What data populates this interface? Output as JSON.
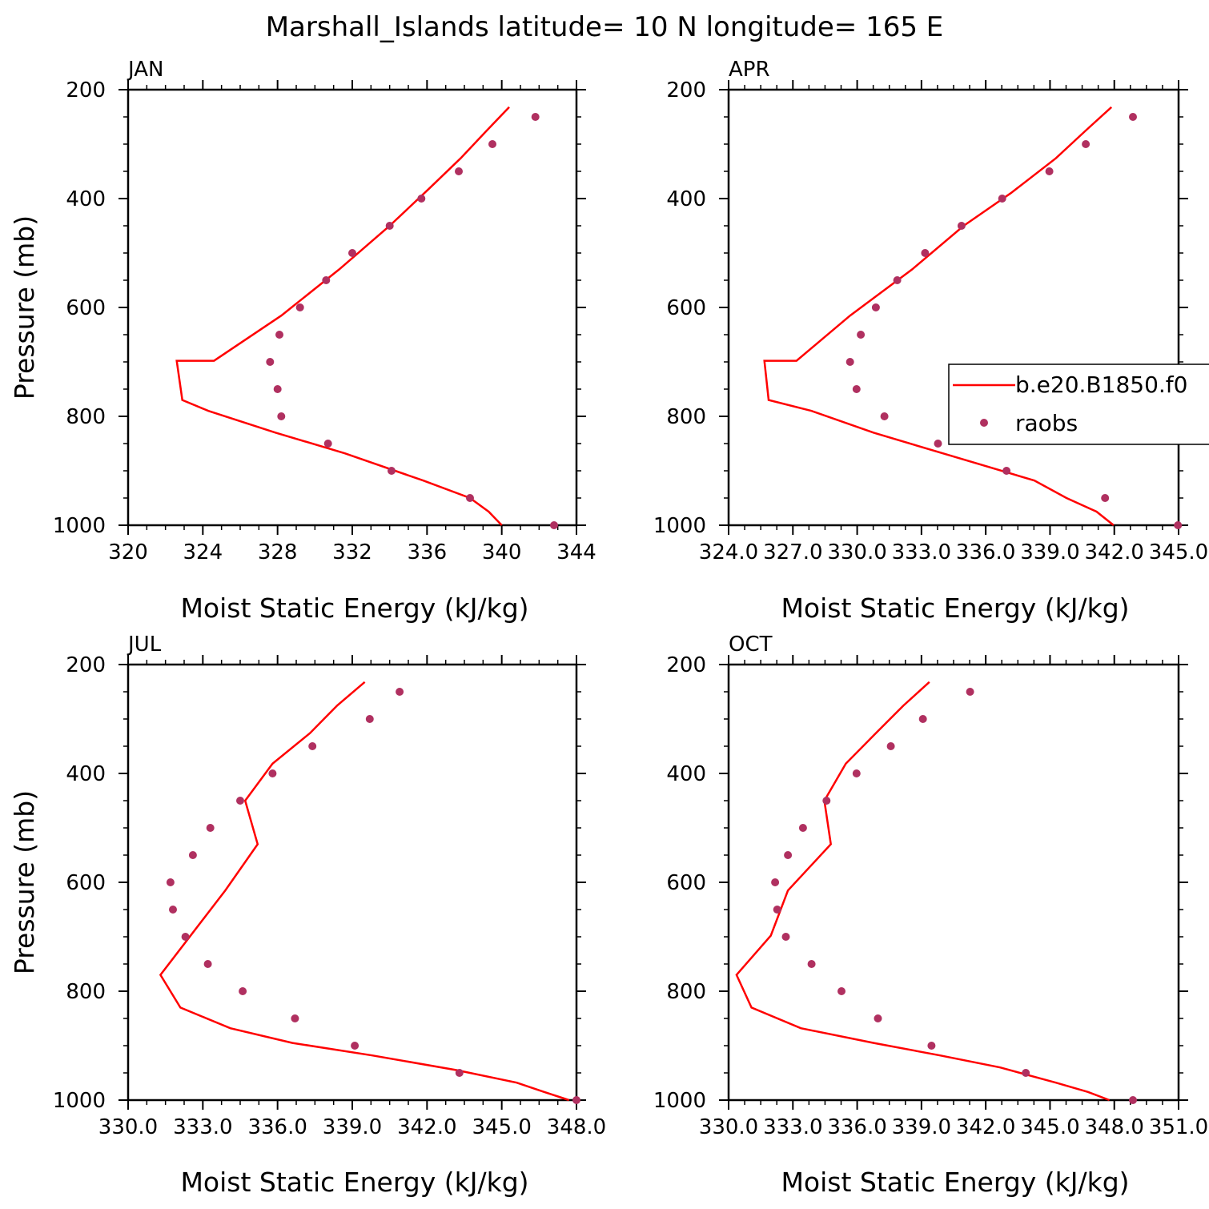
{
  "title": "Marshall_Islands  latitude= 10 N longitude= 165 E",
  "colors": {
    "model": "#ff0000",
    "obs": "#b03060",
    "axis": "#000000"
  },
  "legend": {
    "model_label": "b.e20.B1850.f0",
    "obs_label": "raobs",
    "panel": 1
  },
  "chart_data": [
    {
      "type": "line+scatter",
      "panel": "JAN",
      "xlabel": "Moist Static Energy (kJ/kg)",
      "ylabel": "Pressure (mb)",
      "xlim": [
        320,
        344
      ],
      "ylim": [
        1000,
        200
      ],
      "x_ticks": [
        "320",
        "324",
        "328",
        "332",
        "336",
        "340",
        "344"
      ],
      "x_tick_values": [
        320,
        324,
        328,
        332,
        336,
        340,
        344
      ],
      "y_ticks": [
        "200",
        "400",
        "600",
        "800",
        "1000"
      ],
      "y_tick_values": [
        200,
        400,
        600,
        800,
        1000
      ],
      "series": [
        {
          "kind": "line",
          "points": [
            [
              340.4,
              232
            ],
            [
              339.2,
              275
            ],
            [
              337.8,
              326
            ],
            [
              336.1,
              382
            ],
            [
              334.0,
              450
            ],
            [
              331.3,
              530
            ],
            [
              328.2,
              615
            ],
            [
              324.6,
              698
            ],
            [
              322.6,
              698
            ],
            [
              322.9,
              770
            ],
            [
              324.3,
              790
            ],
            [
              327.9,
              830
            ],
            [
              331.6,
              868
            ],
            [
              335.8,
              918
            ],
            [
              338.3,
              950
            ],
            [
              339.3,
              975
            ],
            [
              340.0,
              1000
            ]
          ]
        },
        {
          "kind": "scatter",
          "points": [
            [
              341.8,
              250
            ],
            [
              339.5,
              300
            ],
            [
              337.7,
              350
            ],
            [
              335.7,
              400
            ],
            [
              334.0,
              450
            ],
            [
              332.0,
              500
            ],
            [
              330.6,
              550
            ],
            [
              329.2,
              600
            ],
            [
              328.1,
              650
            ],
            [
              327.6,
              700
            ],
            [
              328.0,
              750
            ],
            [
              328.2,
              800
            ],
            [
              330.7,
              850
            ],
            [
              334.1,
              900
            ],
            [
              338.3,
              950
            ],
            [
              342.8,
              1000
            ]
          ]
        }
      ]
    },
    {
      "type": "line+scatter",
      "panel": "APR",
      "xlabel": "Moist Static Energy (kJ/kg)",
      "ylabel": "",
      "xlim": [
        324.03,
        345.03
      ],
      "ylim": [
        1000,
        200
      ],
      "x_ticks": [
        "324.0",
        "327.0",
        "330.0",
        "333.0",
        "336.0",
        "339.0",
        "342.0",
        "345.0"
      ],
      "x_tick_values": [
        324.03,
        327.03,
        330.03,
        333.03,
        336.03,
        339.03,
        342.03,
        345.03
      ],
      "y_ticks": [
        "200",
        "400",
        "600",
        "800",
        "1000"
      ],
      "y_tick_values": [
        200,
        400,
        600,
        800,
        1000
      ],
      "series": [
        {
          "kind": "line",
          "points": [
            [
              341.9,
              232
            ],
            [
              340.7,
              275
            ],
            [
              339.3,
              326
            ],
            [
              337.2,
              390
            ],
            [
              335.0,
              450
            ],
            [
              332.6,
              530
            ],
            [
              329.7,
              615
            ],
            [
              327.2,
              698
            ],
            [
              325.7,
              698
            ],
            [
              325.9,
              770
            ],
            [
              327.9,
              790
            ],
            [
              330.8,
              830
            ],
            [
              334.2,
              870
            ],
            [
              338.3,
              918
            ],
            [
              339.8,
              950
            ],
            [
              341.2,
              975
            ],
            [
              342.0,
              1000
            ]
          ]
        },
        {
          "kind": "scatter",
          "points": [
            [
              342.9,
              250
            ],
            [
              340.7,
              300
            ],
            [
              339.0,
              350
            ],
            [
              336.8,
              400
            ],
            [
              334.9,
              450
            ],
            [
              333.2,
              500
            ],
            [
              331.9,
              550
            ],
            [
              330.9,
              600
            ],
            [
              330.2,
              650
            ],
            [
              329.7,
              700
            ],
            [
              330.0,
              750
            ],
            [
              331.3,
              800
            ],
            [
              333.8,
              850
            ],
            [
              337.0,
              900
            ],
            [
              341.6,
              950
            ],
            [
              345.0,
              1000
            ]
          ]
        }
      ]
    },
    {
      "type": "line+scatter",
      "panel": "JUL",
      "xlabel": "Moist Static Energy (kJ/kg)",
      "ylabel": "Pressure (mb)",
      "xlim": [
        330.0,
        348.0
      ],
      "ylim": [
        1000,
        200
      ],
      "x_ticks": [
        "330.0",
        "333.0",
        "336.0",
        "339.0",
        "342.0",
        "345.0",
        "348.0"
      ],
      "x_tick_values": [
        330,
        333,
        336,
        339,
        342,
        345,
        348
      ],
      "y_ticks": [
        "200",
        "400",
        "600",
        "800",
        "1000"
      ],
      "y_tick_values": [
        200,
        400,
        600,
        800,
        1000
      ],
      "series": [
        {
          "kind": "line",
          "points": [
            [
              339.5,
              232
            ],
            [
              338.4,
              275
            ],
            [
              337.3,
              326
            ],
            [
              335.8,
              382
            ],
            [
              334.7,
              450
            ],
            [
              335.2,
              530
            ],
            [
              333.9,
              615
            ],
            [
              331.3,
              770
            ],
            [
              332.1,
              830
            ],
            [
              334.1,
              868
            ],
            [
              336.6,
              895
            ],
            [
              339.8,
              918
            ],
            [
              343.2,
              945
            ],
            [
              345.6,
              968
            ],
            [
              346.7,
              985
            ],
            [
              347.7,
              1000
            ]
          ]
        },
        {
          "kind": "scatter",
          "points": [
            [
              340.9,
              250
            ],
            [
              339.7,
              300
            ],
            [
              337.4,
              350
            ],
            [
              335.8,
              400
            ],
            [
              334.5,
              450
            ],
            [
              333.3,
              500
            ],
            [
              332.6,
              550
            ],
            [
              331.7,
              600
            ],
            [
              331.8,
              650
            ],
            [
              332.3,
              700
            ],
            [
              333.2,
              750
            ],
            [
              334.6,
              800
            ],
            [
              336.7,
              850
            ],
            [
              339.1,
              900
            ],
            [
              343.3,
              950
            ],
            [
              348.0,
              1000
            ]
          ]
        }
      ]
    },
    {
      "type": "line+scatter",
      "panel": "OCT",
      "xlabel": "Moist Static Energy (kJ/kg)",
      "ylabel": "",
      "xlim": [
        330.03,
        351.03
      ],
      "ylim": [
        1000,
        200
      ],
      "x_ticks": [
        "330.0",
        "333.0",
        "336.0",
        "339.0",
        "342.0",
        "345.0",
        "348.0",
        "351.0"
      ],
      "x_tick_values": [
        330.03,
        333.03,
        336.03,
        339.03,
        342.03,
        345.03,
        348.03,
        351.03
      ],
      "y_ticks": [
        "200",
        "400",
        "600",
        "800",
        "1000"
      ],
      "y_tick_values": [
        200,
        400,
        600,
        800,
        1000
      ],
      "series": [
        {
          "kind": "line",
          "points": [
            [
              339.4,
              232
            ],
            [
              338.2,
              275
            ],
            [
              336.9,
              326
            ],
            [
              335.5,
              382
            ],
            [
              334.5,
              450
            ],
            [
              334.8,
              530
            ],
            [
              332.8,
              615
            ],
            [
              332.0,
              698
            ],
            [
              330.4,
              770
            ],
            [
              331.1,
              830
            ],
            [
              333.4,
              868
            ],
            [
              336.8,
              895
            ],
            [
              339.9,
              918
            ],
            [
              342.7,
              940
            ],
            [
              345.3,
              968
            ],
            [
              346.8,
              985
            ],
            [
              347.8,
              1000
            ]
          ]
        },
        {
          "kind": "scatter",
          "points": [
            [
              341.3,
              250
            ],
            [
              339.1,
              300
            ],
            [
              337.6,
              350
            ],
            [
              336.0,
              400
            ],
            [
              334.6,
              450
            ],
            [
              333.5,
              500
            ],
            [
              332.8,
              550
            ],
            [
              332.2,
              600
            ],
            [
              332.3,
              650
            ],
            [
              332.7,
              700
            ],
            [
              333.9,
              750
            ],
            [
              335.3,
              800
            ],
            [
              337.0,
              850
            ],
            [
              339.5,
              900
            ],
            [
              343.9,
              950
            ],
            [
              348.9,
              1000
            ]
          ]
        }
      ]
    }
  ]
}
